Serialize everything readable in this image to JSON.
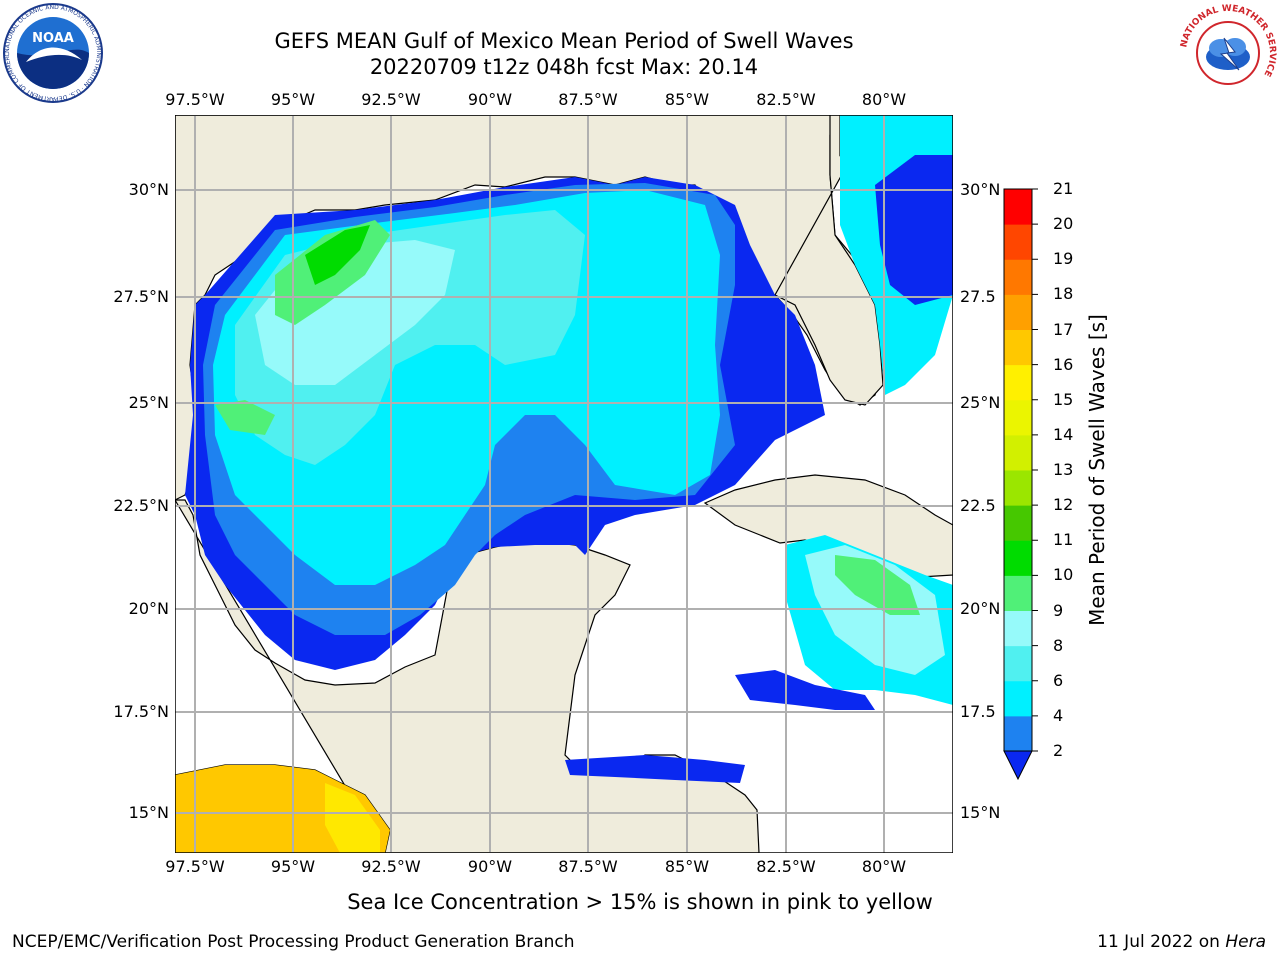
{
  "header": {
    "title": "GEFS MEAN Gulf of Mexico Mean Period of Swell Waves",
    "subtitle": "20220709 t12z 048h fcst   Max: 20.14"
  },
  "logos": {
    "noaa": {
      "text": "NOAA",
      "ring_text": "NATIONAL OCEANIC AND ATMOSPHERIC ADMINISTRATION · U.S. DEPARTMENT OF COMMERCE"
    },
    "nws": {
      "ring_text": "NATIONAL WEATHER SERVICE"
    }
  },
  "map": {
    "lon_labels": [
      "97.5°W",
      "95°W",
      "92.5°W",
      "90°W",
      "87.5°W",
      "85°W",
      "82.5°W",
      "80°W"
    ],
    "lat_labels_left": [
      "30°N",
      "27.5°N",
      "25°N",
      "22.5°N",
      "20°N",
      "17.5°N",
      "15°N"
    ],
    "lat_labels_right": [
      "30°N",
      "27.5",
      "25°N",
      "22.5",
      "20°N",
      "17.5",
      "15°N"
    ],
    "extent": {
      "lon_min": -98,
      "lon_max": -78.2,
      "lat_min": 14.0,
      "lat_max": 31.7
    },
    "grid": true,
    "colors": {
      "land": "#efecdc",
      "ocean_no_data": "#ffffff",
      "grid": "#b0b0b0",
      "coast": "#000000"
    }
  },
  "colorbar": {
    "label": "Mean Period of Swell Waves [s]",
    "ticks": [
      "2",
      "4",
      "6",
      "8",
      "9",
      "10",
      "11",
      "12",
      "13",
      "14",
      "15",
      "16",
      "17",
      "18",
      "19",
      "20",
      "21"
    ],
    "colors": [
      "#0a28f0",
      "#1e82f0",
      "#00f0ff",
      "#50f0f0",
      "#96fafa",
      "#50f078",
      "#00dc00",
      "#46c800",
      "#9be600",
      "#d2f000",
      "#ebf500",
      "#fff000",
      "#ffc800",
      "#ffa000",
      "#ff7800",
      "#ff4600",
      "#ff0000"
    ],
    "extend": "min"
  },
  "note": "Sea Ice Concentration > 15% is shown in pink to yellow",
  "footer": {
    "left": "NCEP/EMC/Verification Post Processing Product Generation Branch",
    "right_date": "11 Jul 2022 on",
    "right_host": "Hera"
  },
  "chart_data": {
    "type": "heatmap",
    "title": "GEFS MEAN Gulf of Mexico Mean Period of Swell Waves",
    "subtitle": "20220709 t12z 048h fcst   Max: 20.14",
    "units": "s",
    "max": 20.14,
    "value_scale": [
      2,
      4,
      6,
      8,
      9,
      10,
      11,
      12,
      13,
      14,
      15,
      16,
      17,
      18,
      19,
      20,
      21
    ],
    "regions": [
      {
        "area": "northern Gulf of Mexico",
        "approx_period_s": [
          6,
          9
        ]
      },
      {
        "area": "northwestern Gulf off Texas/Louisiana",
        "approx_period_s": [
          9,
          12
        ]
      },
      {
        "area": "southwestern Gulf / Bay of Campeche",
        "approx_period_s": [
          2,
          6
        ]
      },
      {
        "area": "eastern Gulf near Florida",
        "approx_period_s": [
          2,
          4
        ]
      },
      {
        "area": "western Caribbean south of Cuba",
        "approx_period_s": [
          6,
          10
        ]
      },
      {
        "area": "Atlantic east of Florida",
        "approx_period_s": [
          2,
          6
        ]
      },
      {
        "area": "Pacific south of Mexico",
        "approx_period_s": [
          15,
          20
        ]
      }
    ]
  }
}
